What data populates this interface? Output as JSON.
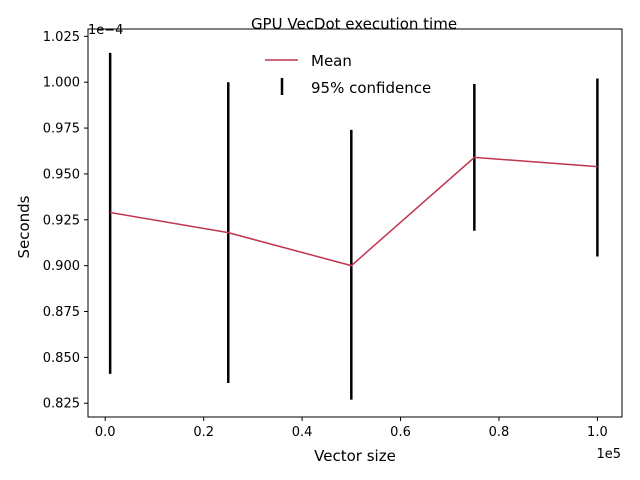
{
  "chart_data": {
    "type": "line",
    "title": "GPU VecDot execution time",
    "xlabel": "Vector size",
    "ylabel": "Seconds",
    "x_offset_label": "1e5",
    "y_offset_label": "1e−4",
    "x_scale_factor": 100000,
    "y_scale_factor": 0.0001,
    "xlim": [
      -3500,
      105000
    ],
    "ylim": [
      8.175e-05,
      0.0001029
    ],
    "x_ticks": [
      0,
      20000,
      40000,
      60000,
      80000,
      100000
    ],
    "x_tick_labels": [
      "0.0",
      "0.2",
      "0.4",
      "0.6",
      "0.8",
      "1.0"
    ],
    "y_ticks": [
      8.25e-05,
      8.5e-05,
      8.75e-05,
      9e-05,
      9.25e-05,
      9.5e-05,
      9.75e-05,
      0.0001,
      0.0001025
    ],
    "y_tick_labels": [
      "0.825",
      "0.850",
      "0.875",
      "0.900",
      "0.925",
      "0.950",
      "0.975",
      "1.000",
      "1.025"
    ],
    "legend_position": "upper-center",
    "grid": false,
    "series": [
      {
        "name": "Mean",
        "color": "#c0354f",
        "x": [
          1000,
          25000,
          50000,
          75000,
          100000
        ],
        "values": [
          9.29e-05,
          9.18e-05,
          9e-05,
          9.59e-05,
          9.54e-05
        ]
      },
      {
        "name": "95% confidence",
        "color": "#000000",
        "x": [
          1000,
          25000,
          50000,
          75000,
          100000
        ],
        "lower": [
          8.41e-05,
          8.36e-05,
          8.27e-05,
          9.19e-05,
          9.05e-05
        ],
        "upper": [
          0.0001016,
          0.0001,
          9.74e-05,
          9.99e-05,
          0.0001002
        ]
      }
    ]
  }
}
